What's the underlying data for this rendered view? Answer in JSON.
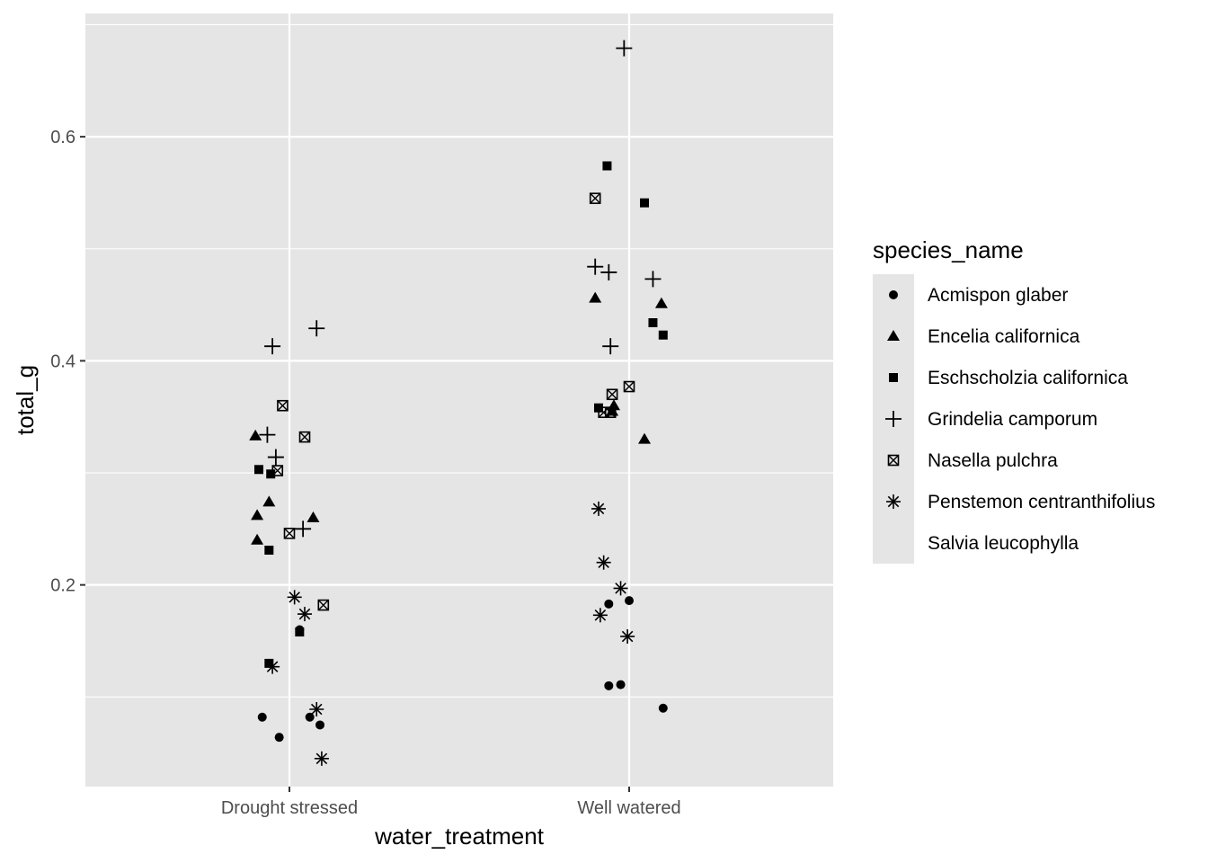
{
  "chart_data": {
    "type": "scatter",
    "xlabel": "water_treatment",
    "ylabel": "total_g",
    "categories": [
      "Drought stressed",
      "Well watered"
    ],
    "ylim": [
      0.02,
      0.71
    ],
    "yticks": [
      0.2,
      0.4,
      0.6
    ],
    "grid": true,
    "legend": {
      "title": "species_name",
      "position": "right"
    },
    "colors": {
      "panel": "#e5e5e5",
      "grid": "#ffffff",
      "point": "#000000",
      "tick_text": "#4d4d4d"
    },
    "series": [
      {
        "name": "Acmispon glaber",
        "shape": "circle",
        "points": [
          {
            "x": "Drought stressed",
            "jitter": -0.08,
            "y": 0.082
          },
          {
            "x": "Drought stressed",
            "jitter": -0.03,
            "y": 0.064
          },
          {
            "x": "Drought stressed",
            "jitter": 0.03,
            "y": 0.16
          },
          {
            "x": "Drought stressed",
            "jitter": 0.06,
            "y": 0.082
          },
          {
            "x": "Drought stressed",
            "jitter": 0.09,
            "y": 0.075
          },
          {
            "x": "Well watered",
            "jitter": -0.06,
            "y": 0.183
          },
          {
            "x": "Well watered",
            "jitter": 0.0,
            "y": 0.186
          },
          {
            "x": "Well watered",
            "jitter": -0.06,
            "y": 0.11
          },
          {
            "x": "Well watered",
            "jitter": -0.025,
            "y": 0.111
          },
          {
            "x": "Well watered",
            "jitter": 0.1,
            "y": 0.09
          }
        ]
      },
      {
        "name": "Encelia californica",
        "shape": "triangle",
        "points": [
          {
            "x": "Drought stressed",
            "jitter": -0.1,
            "y": 0.333
          },
          {
            "x": "Drought stressed",
            "jitter": -0.06,
            "y": 0.274
          },
          {
            "x": "Drought stressed",
            "jitter": -0.095,
            "y": 0.262
          },
          {
            "x": "Drought stressed",
            "jitter": -0.095,
            "y": 0.24
          },
          {
            "x": "Drought stressed",
            "jitter": 0.07,
            "y": 0.26
          },
          {
            "x": "Well watered",
            "jitter": -0.1,
            "y": 0.456
          },
          {
            "x": "Well watered",
            "jitter": 0.095,
            "y": 0.451
          },
          {
            "x": "Well watered",
            "jitter": -0.045,
            "y": 0.36
          },
          {
            "x": "Well watered",
            "jitter": -0.05,
            "y": 0.355
          },
          {
            "x": "Well watered",
            "jitter": 0.045,
            "y": 0.33
          }
        ]
      },
      {
        "name": "Eschscholzia californica",
        "shape": "square",
        "points": [
          {
            "x": "Drought stressed",
            "jitter": -0.09,
            "y": 0.303
          },
          {
            "x": "Drought stressed",
            "jitter": -0.055,
            "y": 0.299
          },
          {
            "x": "Drought stressed",
            "jitter": -0.06,
            "y": 0.231
          },
          {
            "x": "Drought stressed",
            "jitter": 0.03,
            "y": 0.158
          },
          {
            "x": "Drought stressed",
            "jitter": -0.06,
            "y": 0.13
          },
          {
            "x": "Well watered",
            "jitter": -0.065,
            "y": 0.574
          },
          {
            "x": "Well watered",
            "jitter": 0.045,
            "y": 0.541
          },
          {
            "x": "Well watered",
            "jitter": 0.07,
            "y": 0.434
          },
          {
            "x": "Well watered",
            "jitter": 0.1,
            "y": 0.423
          },
          {
            "x": "Well watered",
            "jitter": -0.09,
            "y": 0.358
          }
        ]
      },
      {
        "name": "Grindelia camporum",
        "shape": "plus",
        "points": [
          {
            "x": "Drought stressed",
            "jitter": -0.05,
            "y": 0.413
          },
          {
            "x": "Drought stressed",
            "jitter": 0.08,
            "y": 0.429
          },
          {
            "x": "Drought stressed",
            "jitter": -0.065,
            "y": 0.334
          },
          {
            "x": "Drought stressed",
            "jitter": -0.04,
            "y": 0.314
          },
          {
            "x": "Drought stressed",
            "jitter": 0.04,
            "y": 0.25
          },
          {
            "x": "Well watered",
            "jitter": -0.015,
            "y": 0.679
          },
          {
            "x": "Well watered",
            "jitter": -0.1,
            "y": 0.484
          },
          {
            "x": "Well watered",
            "jitter": -0.06,
            "y": 0.479
          },
          {
            "x": "Well watered",
            "jitter": 0.07,
            "y": 0.473
          },
          {
            "x": "Well watered",
            "jitter": -0.055,
            "y": 0.413
          }
        ]
      },
      {
        "name": "Nasella pulchra",
        "shape": "square-x",
        "points": [
          {
            "x": "Drought stressed",
            "jitter": -0.02,
            "y": 0.36
          },
          {
            "x": "Drought stressed",
            "jitter": 0.045,
            "y": 0.332
          },
          {
            "x": "Drought stressed",
            "jitter": -0.035,
            "y": 0.302
          },
          {
            "x": "Drought stressed",
            "jitter": 0.0,
            "y": 0.246
          },
          {
            "x": "Drought stressed",
            "jitter": 0.1,
            "y": 0.182
          },
          {
            "x": "Well watered",
            "jitter": -0.1,
            "y": 0.545
          },
          {
            "x": "Well watered",
            "jitter": 0.0,
            "y": 0.377
          },
          {
            "x": "Well watered",
            "jitter": -0.05,
            "y": 0.37
          },
          {
            "x": "Well watered",
            "jitter": -0.075,
            "y": 0.354
          },
          {
            "x": "Well watered",
            "jitter": -0.055,
            "y": 0.354
          }
        ]
      },
      {
        "name": "Penstemon centranthifolius",
        "shape": "asterisk",
        "points": [
          {
            "x": "Drought stressed",
            "jitter": 0.015,
            "y": 0.189
          },
          {
            "x": "Drought stressed",
            "jitter": 0.045,
            "y": 0.174
          },
          {
            "x": "Drought stressed",
            "jitter": -0.05,
            "y": 0.127
          },
          {
            "x": "Drought stressed",
            "jitter": 0.08,
            "y": 0.089
          },
          {
            "x": "Drought stressed",
            "jitter": 0.095,
            "y": 0.045
          },
          {
            "x": "Well watered",
            "jitter": -0.09,
            "y": 0.268
          },
          {
            "x": "Well watered",
            "jitter": -0.075,
            "y": 0.22
          },
          {
            "x": "Well watered",
            "jitter": -0.025,
            "y": 0.197
          },
          {
            "x": "Well watered",
            "jitter": -0.085,
            "y": 0.173
          },
          {
            "x": "Well watered",
            "jitter": -0.005,
            "y": 0.154
          }
        ]
      },
      {
        "name": "Salvia leucophylla",
        "shape": "none",
        "points": []
      }
    ]
  }
}
